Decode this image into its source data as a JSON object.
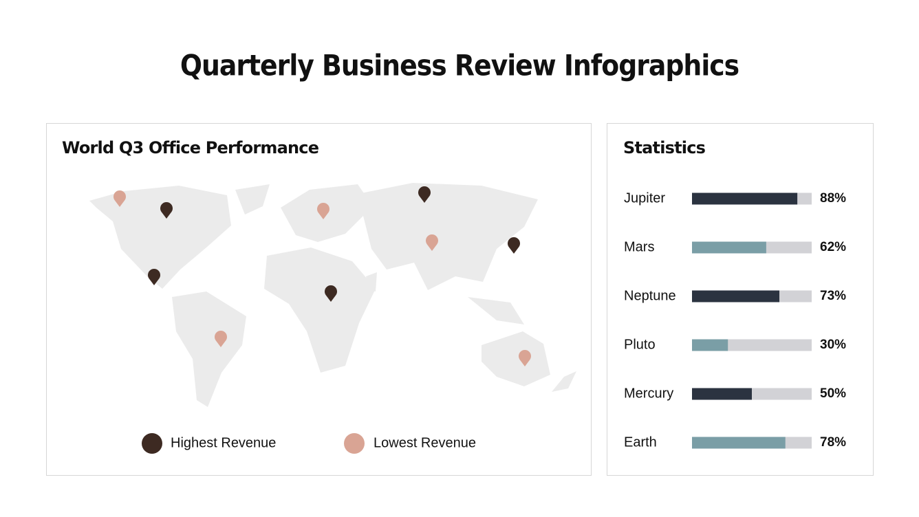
{
  "title": "Quarterly Business Review Infographics",
  "map": {
    "title": "World Q3 Office Performance",
    "legend": [
      {
        "name": "Highest Revenue",
        "color": "#3d2a22"
      },
      {
        "name": "Lowest Revenue",
        "color": "#d9a494"
      }
    ]
  },
  "chart_data": {
    "type": "hbar",
    "title": "Statistics",
    "categories": [
      "Jupiter",
      "Mars",
      "Neptune",
      "Pluto",
      "Mercury",
      "Earth"
    ],
    "values": [
      88,
      62,
      73,
      30,
      50,
      78
    ],
    "value_labels": [
      "88%",
      "62%",
      "73%",
      "30%",
      "50%",
      "78%"
    ],
    "colors": [
      "#2b3340",
      "#7a9ea6",
      "#2b3340",
      "#7a9ea6",
      "#2b3340",
      "#7a9ea6"
    ],
    "track_color": "#d2d2d6",
    "xlim": [
      0,
      100
    ]
  }
}
